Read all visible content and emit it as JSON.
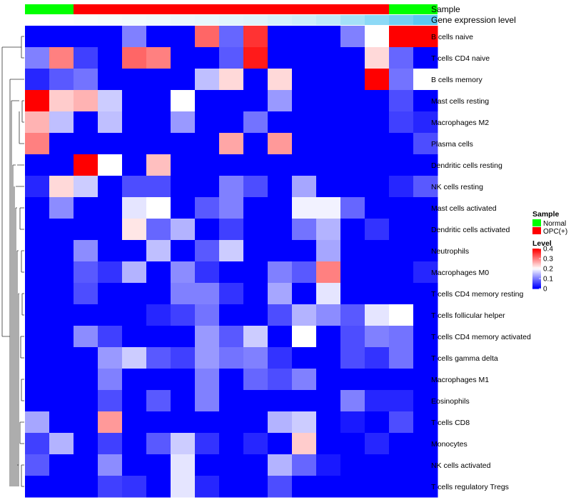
{
  "chart_data": {
    "type": "heatmap",
    "title": "",
    "annotations": {
      "sample_label": "Sample",
      "expression_label": "Gene expression level",
      "sample_groups": [
        "Normal",
        "Normal",
        "OPC(+)",
        "OPC(+)",
        "OPC(+)",
        "OPC(+)",
        "OPC(+)",
        "OPC(+)",
        "OPC(+)",
        "OPC(+)",
        "OPC(+)",
        "OPC(+)",
        "OPC(+)",
        "OPC(+)",
        "OPC(+)",
        "Normal",
        "Normal"
      ],
      "expression_levels": [
        0.0,
        0.02,
        0.04,
        0.06,
        0.08,
        0.1,
        0.12,
        0.15,
        0.18,
        0.2,
        0.25,
        0.3,
        0.38,
        0.55,
        0.7,
        0.85,
        1.0
      ]
    },
    "rows": [
      "B cells naive",
      "T cells CD4 naive",
      "B cells memory",
      "Mast cells resting",
      "Macrophages M2",
      "Plasma cells",
      "Dendritic cells resting",
      "NK cells resting",
      "Mast cells activated",
      "Dendritic cells activated",
      "Neutrophils",
      "Macrophages M0",
      "T cells CD4 memory resting",
      "T cells follicular helper",
      "T cells CD4 memory activated",
      "T cells gamma delta",
      "Macrophages M1",
      "Eosinophils",
      "T cells CD8",
      "Monocytes",
      "NK cells activated",
      "T cells regulatory  Tregs"
    ],
    "values": [
      [
        0,
        0,
        0,
        0,
        0.1,
        0,
        0,
        0.32,
        0.08,
        0.36,
        0,
        0,
        0,
        0.1,
        0.2,
        0.4,
        0.4
      ],
      [
        0.1,
        0.3,
        0.05,
        0,
        0.32,
        0.3,
        0,
        0,
        0.07,
        0.38,
        0,
        0,
        0,
        0,
        0.23,
        0.08,
        0
      ],
      [
        0.03,
        0.07,
        0.09,
        0,
        0,
        0,
        0,
        0.15,
        0.23,
        0,
        0.23,
        0,
        0,
        0,
        0.4,
        0.09,
        0.2
      ],
      [
        0.4,
        0.24,
        0.26,
        0.16,
        0,
        0,
        0.2,
        0,
        0,
        0,
        0.12,
        0,
        0,
        0,
        0,
        0.06,
        0
      ],
      [
        0.26,
        0.15,
        0,
        0.15,
        0,
        0,
        0.12,
        0,
        0,
        0.09,
        0,
        0,
        0,
        0,
        0,
        0.05,
        0.03
      ],
      [
        0.3,
        0,
        0,
        0,
        0,
        0,
        0,
        0,
        0.27,
        0,
        0.28,
        0,
        0,
        0,
        0,
        0,
        0.06
      ],
      [
        0,
        0,
        0.4,
        0.2,
        0,
        0.25,
        0,
        0,
        0,
        0,
        0,
        0,
        0,
        0,
        0,
        0,
        0
      ],
      [
        0.03,
        0.23,
        0.16,
        0,
        0.06,
        0.06,
        0,
        0,
        0.1,
        0.06,
        0,
        0.13,
        0,
        0,
        0,
        0.03,
        0.07
      ],
      [
        0,
        0.11,
        0,
        0,
        0.18,
        0.2,
        0,
        0.07,
        0.1,
        0,
        0,
        0.19,
        0.19,
        0.08,
        0,
        0,
        0
      ],
      [
        0,
        0,
        0,
        0,
        0.22,
        0.08,
        0.14,
        0,
        0.05,
        0,
        0,
        0.09,
        0.14,
        0,
        0.04,
        0,
        0
      ],
      [
        0,
        0,
        0.11,
        0,
        0,
        0.15,
        0,
        0.07,
        0.16,
        0,
        0,
        0,
        0.13,
        0,
        0,
        0,
        0
      ],
      [
        0,
        0,
        0.07,
        0.04,
        0.14,
        0,
        0.11,
        0.04,
        0,
        0,
        0.1,
        0.07,
        0.3,
        0,
        0,
        0,
        0.03
      ],
      [
        0,
        0,
        0.06,
        0,
        0,
        0,
        0.1,
        0.1,
        0.04,
        0,
        0.13,
        0,
        0.18,
        0,
        0,
        0,
        0
      ],
      [
        0,
        0,
        0,
        0,
        0,
        0.03,
        0.05,
        0.09,
        0,
        0,
        0.06,
        0.14,
        0.11,
        0.07,
        0.18,
        0.2,
        0
      ],
      [
        0,
        0,
        0.11,
        0.05,
        0,
        0,
        0,
        0.12,
        0.07,
        0.16,
        0,
        0.2,
        0,
        0.06,
        0.1,
        0.09,
        0
      ],
      [
        0,
        0,
        0,
        0.12,
        0.16,
        0.07,
        0.05,
        0.12,
        0.09,
        0.1,
        0.04,
        0,
        0,
        0.06,
        0.04,
        0.09,
        0
      ],
      [
        0,
        0,
        0,
        0.1,
        0,
        0,
        0,
        0.1,
        0,
        0.08,
        0.06,
        0.1,
        0,
        0,
        0,
        0,
        0
      ],
      [
        0,
        0,
        0,
        0.06,
        0,
        0.07,
        0,
        0.1,
        0,
        0,
        0,
        0,
        0,
        0.1,
        0.03,
        0.03,
        0
      ],
      [
        0.13,
        0,
        0,
        0.28,
        0,
        0,
        0,
        0,
        0,
        0,
        0.14,
        0.16,
        0,
        0.02,
        0,
        0.06,
        0
      ],
      [
        0.05,
        0.14,
        0,
        0.05,
        0,
        0.07,
        0.16,
        0.04,
        0,
        0.03,
        0,
        0.24,
        0,
        0,
        0.03,
        0,
        0
      ],
      [
        0.07,
        0,
        0,
        0.11,
        0,
        0,
        0.18,
        0,
        0,
        0,
        0.14,
        0.08,
        0.02,
        0,
        0,
        0,
        0
      ],
      [
        0,
        0,
        0,
        0.05,
        0.04,
        0,
        0.18,
        0.03,
        0,
        0,
        0.06,
        0,
        0,
        0,
        0,
        0,
        0
      ]
    ],
    "color_scale": {
      "low": "#0000ff",
      "mid": "#ffffff",
      "high": "#ff0000",
      "min": 0,
      "max": 0.4,
      "mid_value": 0.2
    },
    "legend": {
      "sample_title": "Sample",
      "sample_entries": [
        {
          "label": "Normal",
          "color": "#00ff00"
        },
        {
          "label": "OPC(+)",
          "color": "#ff0000"
        }
      ],
      "level_title": "Level",
      "level_ticks": [
        {
          "value": 0.4,
          "label": "0.4"
        },
        {
          "value": 0.3,
          "label": "0.3"
        },
        {
          "value": 0.2,
          "label": "0.2"
        },
        {
          "value": 0.1,
          "label": "0.1"
        },
        {
          "value": 0,
          "label": "0"
        }
      ]
    },
    "expression_colors": {
      "low": "#ffffff",
      "high": "#5cc8f2"
    },
    "dendrogram": "row-clustered"
  }
}
